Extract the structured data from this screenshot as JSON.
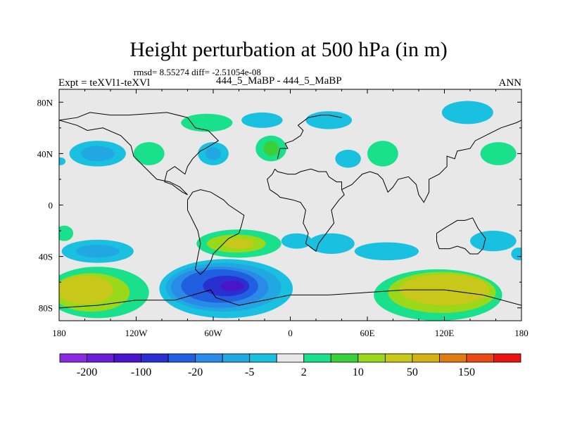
{
  "header": {
    "title": "Height perturbation at 500 hPa (in m)",
    "stats": "rmsd= 8.55274 diff= -2.51054e-08",
    "left_label": "Expt = teXVl1-teXVl",
    "center_label": "444_5_MaBP - 444_5_MaBP",
    "right_label": "ANN"
  },
  "chart_data": {
    "type": "heatmap",
    "title": "Height perturbation at 500 hPa (in m)",
    "subtitle": "rmsd= 8.55274 diff= -2.51054e-08",
    "xlabel": "",
    "ylabel": "",
    "xlim": [
      -180,
      180
    ],
    "ylim": [
      -90,
      90
    ],
    "x_ticks": [
      {
        "value": -180,
        "label": "180"
      },
      {
        "value": -120,
        "label": "120W"
      },
      {
        "value": -60,
        "label": "60W"
      },
      {
        "value": 0,
        "label": "0"
      },
      {
        "value": 60,
        "label": "60E"
      },
      {
        "value": 120,
        "label": "120E"
      },
      {
        "value": 180,
        "label": "180"
      }
    ],
    "y_ticks": [
      {
        "value": 80,
        "label": "80N"
      },
      {
        "value": 40,
        "label": "40N"
      },
      {
        "value": 0,
        "label": "0"
      },
      {
        "value": -40,
        "label": "40S"
      },
      {
        "value": -80,
        "label": "80S"
      }
    ],
    "colorbar": {
      "colors": [
        "#8a2be2",
        "#6a1fd6",
        "#4a14c8",
        "#2a2fd0",
        "#1f5fe0",
        "#2a8ae8",
        "#21a8e2",
        "#19c0e0",
        "#e8e8e8",
        "#19e08a",
        "#3ad03a",
        "#9ad81a",
        "#c8c81a",
        "#d4b214",
        "#e07a14",
        "#e84a14",
        "#e81414"
      ],
      "labels": [
        {
          "label": "-200",
          "boundary": 1
        },
        {
          "label": "-100",
          "boundary": 3
        },
        {
          "label": "-20",
          "boundary": 5
        },
        {
          "label": "-5",
          "boundary": 7
        },
        {
          "label": "2",
          "boundary": 9
        },
        {
          "label": "10",
          "boundary": 11
        },
        {
          "label": "50",
          "boundary": 13
        },
        {
          "label": "150",
          "boundary": 15
        }
      ]
    },
    "background_color": "#e8e8e8",
    "regions": [
      {
        "name": "negative-low-nh-60",
        "lon": -150,
        "lat": 40,
        "rlon": 22,
        "rlat": 10,
        "color": "#19c0e0"
      },
      {
        "name": "negative-mid-nh-60",
        "lon": -150,
        "lat": 40,
        "rlon": 13,
        "rlat": 6,
        "color": "#21a8e2"
      },
      {
        "name": "positive-nh-110",
        "lon": -110,
        "lat": 40,
        "rlon": 12,
        "rlat": 9,
        "color": "#19e08a"
      },
      {
        "name": "positive-nh-60w",
        "lon": -65,
        "lat": 64,
        "rlon": 20,
        "rlat": 7,
        "color": "#19e08a"
      },
      {
        "name": "negative-nh-60w",
        "lon": -60,
        "lat": 40,
        "rlon": 12,
        "rlat": 9,
        "color": "#19c0e0"
      },
      {
        "name": "negative-mid-nh-60w",
        "lon": -60,
        "lat": 40,
        "rlon": 6,
        "rlat": 5,
        "color": "#21a8e2"
      },
      {
        "name": "negative-nh-20w",
        "lon": -22,
        "lat": 66,
        "rlon": 16,
        "rlat": 6,
        "color": "#19c0e0"
      },
      {
        "name": "positive-nh-15w",
        "lon": -15,
        "lat": 44,
        "rlon": 12,
        "rlat": 10,
        "color": "#19e08a"
      },
      {
        "name": "positive-mid-nh-15w",
        "lon": -15,
        "lat": 44,
        "rlon": 6,
        "rlat": 6,
        "color": "#3ad03a"
      },
      {
        "name": "negative-nh-30e",
        "lon": 30,
        "lat": 66,
        "rlon": 18,
        "rlat": 7,
        "color": "#19c0e0"
      },
      {
        "name": "negative-nh-45e",
        "lon": 45,
        "lat": 36,
        "rlon": 10,
        "rlat": 7,
        "color": "#19c0e0"
      },
      {
        "name": "positive-nh-70e",
        "lon": 72,
        "lat": 40,
        "rlon": 12,
        "rlat": 10,
        "color": "#19e08a"
      },
      {
        "name": "negative-nh-140e",
        "lon": 138,
        "lat": 72,
        "rlon": 20,
        "rlat": 9,
        "color": "#19c0e0"
      },
      {
        "name": "positive-nh-160e",
        "lon": 162,
        "lat": 40,
        "rlon": 14,
        "rlat": 9,
        "color": "#19e08a"
      },
      {
        "name": "negative-nh-edge",
        "lon": -179,
        "lat": 34,
        "rlon": 4,
        "rlat": 3,
        "color": "#19c0e0"
      },
      {
        "name": "positive-sh-edge",
        "lon": -176,
        "lat": -22,
        "rlon": 7,
        "rlat": 6,
        "color": "#19e08a"
      },
      {
        "name": "negative-sh-150w",
        "lon": -150,
        "lat": -36,
        "rlon": 28,
        "rlat": 9,
        "color": "#19c0e0"
      },
      {
        "name": "negative-mid-sh-150w",
        "lon": -150,
        "lat": -36,
        "rlon": 17,
        "rlat": 5,
        "color": "#21a8e2"
      },
      {
        "name": "positive-sh-150w",
        "lon": -150,
        "lat": -68,
        "rlon": 40,
        "rlat": 20,
        "color": "#19e08a"
      },
      {
        "name": "positive-2-sh-150w",
        "lon": -155,
        "lat": -68,
        "rlon": 30,
        "rlat": 15,
        "color": "#9ad81a"
      },
      {
        "name": "positive-3-sh-150w",
        "lon": -160,
        "lat": -66,
        "rlon": 22,
        "rlat": 11,
        "color": "#c8c81a"
      },
      {
        "name": "positive-sh-40w",
        "lon": -40,
        "lat": -30,
        "rlon": 33,
        "rlat": 11,
        "color": "#19e08a"
      },
      {
        "name": "positive-2-sh-40w",
        "lon": -42,
        "lat": -30,
        "rlon": 23,
        "rlat": 7,
        "color": "#9ad81a"
      },
      {
        "name": "positive-3-sh-40w",
        "lon": -40,
        "lat": -30,
        "rlon": 12,
        "rlat": 4,
        "color": "#c8c81a"
      },
      {
        "name": "negative-sh-5e",
        "lon": 5,
        "lat": -28,
        "rlon": 12,
        "rlat": 6,
        "color": "#19c0e0"
      },
      {
        "name": "negative-sh-30e",
        "lon": 32,
        "lat": -30,
        "rlon": 18,
        "rlat": 8,
        "color": "#19c0e0"
      },
      {
        "name": "negative-sh-60w",
        "lon": -50,
        "lat": -65,
        "rlon": 52,
        "rlat": 23,
        "color": "#19c0e0"
      },
      {
        "name": "negative-2-sh-60w",
        "lon": -52,
        "lat": -64,
        "rlon": 45,
        "rlat": 19,
        "color": "#21a8e2"
      },
      {
        "name": "negative-3-sh-60w",
        "lon": -55,
        "lat": -64,
        "rlon": 38,
        "rlat": 16,
        "color": "#2a8ae8"
      },
      {
        "name": "negative-4-sh-60w",
        "lon": -55,
        "lat": -63,
        "rlon": 30,
        "rlat": 13,
        "color": "#1f5fe0"
      },
      {
        "name": "negative-5-sh-60w",
        "lon": -50,
        "lat": -63,
        "rlon": 18,
        "rlat": 8,
        "color": "#2a2fd0"
      },
      {
        "name": "negative-6-sh-60w",
        "lon": -45,
        "lat": -63,
        "rlon": 9,
        "rlat": 4,
        "color": "#4a14c8"
      },
      {
        "name": "negative-sh-70e",
        "lon": 75,
        "lat": -36,
        "rlon": 25,
        "rlat": 7,
        "color": "#19c0e0"
      },
      {
        "name": "negative-sh-160e",
        "lon": 158,
        "lat": -28,
        "rlon": 18,
        "rlat": 8,
        "color": "#19c0e0"
      },
      {
        "name": "negative-sh-edge",
        "lon": 178,
        "lat": -38,
        "rlon": 6,
        "rlat": 5,
        "color": "#19c0e0"
      },
      {
        "name": "positive-sh-110e",
        "lon": 115,
        "lat": -70,
        "rlon": 50,
        "rlat": 20,
        "color": "#19e08a"
      },
      {
        "name": "positive-2-sh-110e",
        "lon": 118,
        "lat": -68,
        "rlon": 42,
        "rlat": 16,
        "color": "#9ad81a"
      },
      {
        "name": "positive-3-sh-110e",
        "lon": 120,
        "lat": -66,
        "rlon": 35,
        "rlat": 12,
        "color": "#c8c81a"
      }
    ],
    "coastlines": [
      {
        "name": "africa-europe-outline",
        "points": [
          [
            -12,
            28
          ],
          [
            -10,
            26
          ],
          [
            -2,
            24
          ],
          [
            4,
            24
          ],
          [
            8,
            26
          ],
          [
            16,
            28
          ],
          [
            22,
            26
          ],
          [
            28,
            26
          ],
          [
            30,
            22
          ],
          [
            36,
            18
          ],
          [
            40,
            18
          ],
          [
            40,
            12
          ],
          [
            42,
            8
          ],
          [
            38,
            4
          ],
          [
            32,
            -4
          ],
          [
            34,
            -14
          ],
          [
            28,
            -22
          ],
          [
            22,
            -30
          ],
          [
            20,
            -36
          ],
          [
            12,
            -30
          ],
          [
            14,
            -22
          ],
          [
            10,
            -14
          ],
          [
            12,
            -4
          ],
          [
            8,
            2
          ],
          [
            2,
            4
          ],
          [
            -8,
            6
          ],
          [
            -10,
            8
          ],
          [
            -16,
            12
          ],
          [
            -18,
            20
          ],
          [
            -14,
            24
          ],
          [
            -12,
            28
          ]
        ]
      },
      {
        "name": "south-america-outline",
        "points": [
          [
            -80,
            4
          ],
          [
            -76,
            10
          ],
          [
            -70,
            12
          ],
          [
            -62,
            10
          ],
          [
            -52,
            4
          ],
          [
            -48,
            0
          ],
          [
            -36,
            -8
          ],
          [
            -38,
            -16
          ],
          [
            -40,
            -22
          ],
          [
            -48,
            -26
          ],
          [
            -56,
            -34
          ],
          [
            -60,
            -38
          ],
          [
            -62,
            -44
          ],
          [
            -66,
            -50
          ],
          [
            -70,
            -54
          ],
          [
            -74,
            -50
          ],
          [
            -72,
            -40
          ],
          [
            -70,
            -30
          ],
          [
            -72,
            -20
          ],
          [
            -76,
            -12
          ],
          [
            -80,
            -4
          ],
          [
            -80,
            4
          ]
        ]
      },
      {
        "name": "antarctica-outline",
        "points": [
          [
            -180,
            -80
          ],
          [
            -150,
            -78
          ],
          [
            -120,
            -74
          ],
          [
            -90,
            -74
          ],
          [
            -62,
            -66
          ],
          [
            -58,
            -72
          ],
          [
            -40,
            -78
          ],
          [
            -20,
            -74
          ],
          [
            0,
            -70
          ],
          [
            30,
            -70
          ],
          [
            60,
            -68
          ],
          [
            90,
            -66
          ],
          [
            120,
            -66
          ],
          [
            150,
            -70
          ],
          [
            180,
            -78
          ]
        ]
      },
      {
        "name": "australia-outline",
        "points": [
          [
            114,
            -22
          ],
          [
            120,
            -18
          ],
          [
            130,
            -12
          ],
          [
            136,
            -12
          ],
          [
            142,
            -10
          ],
          [
            146,
            -18
          ],
          [
            152,
            -26
          ],
          [
            150,
            -34
          ],
          [
            146,
            -38
          ],
          [
            140,
            -38
          ],
          [
            136,
            -34
          ],
          [
            130,
            -32
          ],
          [
            124,
            -34
          ],
          [
            116,
            -34
          ],
          [
            114,
            -28
          ],
          [
            114,
            -22
          ]
        ]
      },
      {
        "name": "asia-outline",
        "points": [
          [
            40,
            12
          ],
          [
            48,
            16
          ],
          [
            56,
            24
          ],
          [
            62,
            26
          ],
          [
            68,
            24
          ],
          [
            72,
            20
          ],
          [
            76,
            10
          ],
          [
            80,
            14
          ],
          [
            84,
            20
          ],
          [
            92,
            22
          ],
          [
            98,
            16
          ],
          [
            100,
            8
          ],
          [
            104,
            2
          ],
          [
            108,
            10
          ],
          [
            108,
            20
          ],
          [
            116,
            24
          ],
          [
            122,
            30
          ],
          [
            122,
            38
          ],
          [
            128,
            36
          ],
          [
            130,
            42
          ],
          [
            140,
            44
          ],
          [
            144,
            50
          ],
          [
            156,
            56
          ],
          [
            164,
            60
          ],
          [
            176,
            64
          ],
          [
            180,
            66
          ]
        ]
      },
      {
        "name": "north-america-outline",
        "points": [
          [
            -180,
            66
          ],
          [
            -166,
            68
          ],
          [
            -156,
            72
          ],
          [
            -140,
            70
          ],
          [
            -126,
            70
          ],
          [
            -96,
            72
          ],
          [
            -80,
            68
          ],
          [
            -74,
            60
          ],
          [
            -64,
            58
          ],
          [
            -56,
            50
          ],
          [
            -66,
            44
          ],
          [
            -70,
            42
          ],
          [
            -76,
            36
          ],
          [
            -80,
            30
          ],
          [
            -82,
            24
          ],
          [
            -90,
            30
          ],
          [
            -96,
            26
          ],
          [
            -98,
            18
          ],
          [
            -92,
            16
          ],
          [
            -84,
            10
          ],
          [
            -80,
            8
          ],
          [
            -86,
            14
          ],
          [
            -94,
            18
          ],
          [
            -104,
            20
          ],
          [
            -110,
            26
          ],
          [
            -116,
            32
          ],
          [
            -122,
            38
          ],
          [
            -124,
            46
          ],
          [
            -132,
            54
          ],
          [
            -146,
            60
          ],
          [
            -158,
            58
          ],
          [
            -166,
            62
          ],
          [
            -180,
            66
          ]
        ]
      },
      {
        "name": "europe-outline",
        "points": [
          [
            -10,
            36
          ],
          [
            -8,
            44
          ],
          [
            -2,
            44
          ],
          [
            -4,
            48
          ],
          [
            2,
            50
          ],
          [
            8,
            54
          ],
          [
            10,
            58
          ],
          [
            6,
            62
          ],
          [
            14,
            68
          ],
          [
            24,
            70
          ],
          [
            30,
            70
          ],
          [
            40,
            68
          ]
        ]
      }
    ]
  }
}
